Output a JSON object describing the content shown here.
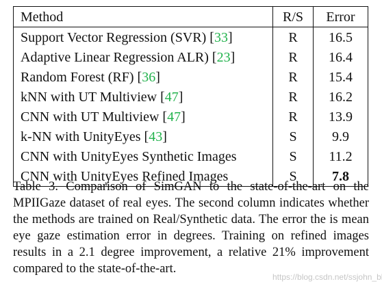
{
  "table": {
    "headers": [
      "Method",
      "R/S",
      "Error"
    ],
    "rows": [
      {
        "method": "Support Vector Regression (SVR) [",
        "ref": "33",
        "close": "]",
        "rs": "R",
        "error": "16.5"
      },
      {
        "method": "Adaptive Linear Regression ALR) [",
        "ref": "23",
        "close": "]",
        "rs": "R",
        "error": "16.4"
      },
      {
        "method": "Random Forest (RF) [",
        "ref": "36",
        "close": "]",
        "rs": "R",
        "error": "15.4"
      },
      {
        "method": "kNN with UT Multiview [",
        "ref": "47",
        "close": "]",
        "rs": "R",
        "error": "16.2"
      },
      {
        "method": "CNN with UT Multiview [",
        "ref": "47",
        "close": "]",
        "rs": "R",
        "error": "13.9"
      },
      {
        "method": "k-NN with UnityEyes [",
        "ref": "43",
        "close": "]",
        "rs": "S",
        "error": "9.9"
      },
      {
        "method": "CNN with UnityEyes Synthetic Images",
        "ref": "",
        "close": "",
        "rs": "S",
        "error": "11.2"
      },
      {
        "method": "CNN with UnityEyes Refined Images",
        "ref": "",
        "close": "",
        "rs": "S",
        "error": "7.8"
      }
    ]
  },
  "caption": "Table 3. Comparison of SimGAN to the state-of-the-art on the MPIIGaze dataset of real eyes. The second column indicates whether the methods are trained on Real/Synthetic data. The error the is mean eye gaze estimation error in degrees. Training on refined images results in a 2.1 degree improvement, a relative 21% improvement compared to the state-of-the-art.",
  "watermark": "https://blog.csdn.net/ssjohn_bh",
  "colors": {
    "reference": "#22b24c",
    "text": "#111111"
  }
}
